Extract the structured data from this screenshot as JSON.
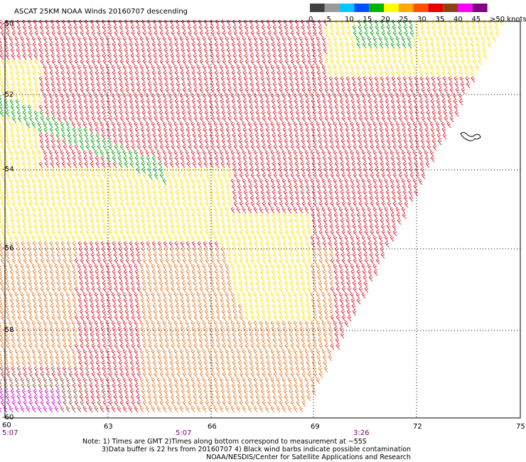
{
  "title": "ASCAT 25KM NOAA Winds 20160707 descending",
  "legend": {
    "labels": [
      "0",
      "5",
      "10",
      "15",
      "20",
      "25",
      "30",
      "35",
      "40",
      "45",
      ">50 knots"
    ],
    "colors": [
      "#404040",
      "#9a9a9a",
      "#00c8ff",
      "#0050ff",
      "#00b400",
      "#ffff00",
      "#ffaa00",
      "#ff5000",
      "#e60000",
      "#8b4513",
      "#ff00ff",
      "#800080"
    ]
  },
  "lat_labels": [
    "-50",
    "-52",
    "-54",
    "-56",
    "-58",
    "-60"
  ],
  "lon_labels": [
    "60",
    "63",
    "66",
    "69",
    "72",
    "75"
  ],
  "times": [
    "5:07",
    "5:07",
    "3:26"
  ],
  "notes": {
    "line1": "Note: 1) Times are GMT 2)Times along bottom correspond to measurement at ~55S",
    "line2": "3)Data buffer is 22 hrs from 20160707 4) Black wind barbs indicate possible contamination",
    "line3": "NOAA/NESDIS/Center for Satellite Applications and Research"
  },
  "colors": {
    "red": "#e01428",
    "orange": "#e87820",
    "yellow": "#ffe000",
    "green": "#00a000",
    "brown": "#8b5030",
    "magenta": "#d000d0"
  }
}
